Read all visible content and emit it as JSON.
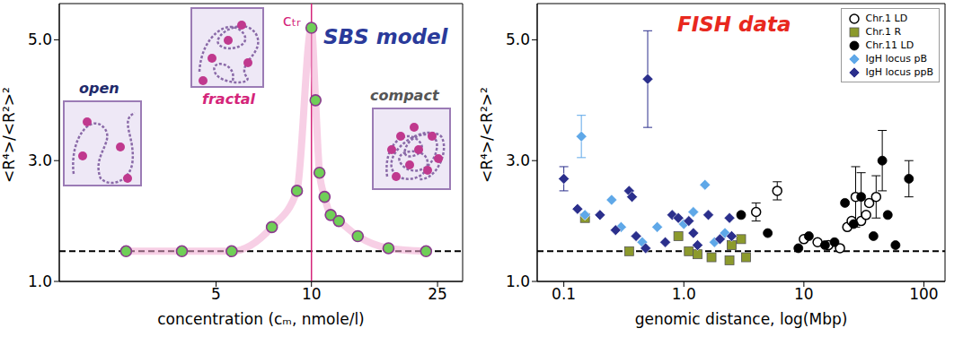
{
  "chart_data": [
    {
      "type": "scatter",
      "title": "SBS model",
      "x_label": "concentration (cₘ, nmole/l)",
      "y_label": "<R⁴>/<R²>²",
      "log": "x",
      "xlim": [
        1.6,
        30
      ],
      "xticks": [
        5,
        10,
        25
      ],
      "ylim": [
        1,
        5.6
      ],
      "yticks": [
        {
          "value": 1,
          "label": "1.0"
        },
        {
          "value": 3,
          "label": "3.0"
        },
        {
          "value": 5,
          "label": "5.0"
        }
      ],
      "x": [
        2.6,
        3.9,
        5.6,
        7.5,
        9.0,
        10.0,
        10.3,
        10.6,
        11.0,
        11.5,
        12.2,
        14.0,
        17.5,
        23.0
      ],
      "values": [
        1.5,
        1.5,
        1.5,
        1.9,
        2.5,
        5.2,
        4.0,
        2.8,
        2.4,
        2.1,
        2.0,
        1.75,
        1.55,
        1.5
      ],
      "color": "#6fcf57",
      "marker": "circle",
      "baseline": 1.5,
      "annotations": [
        {
          "text": "cₜᵣ",
          "x": 10
        }
      ],
      "regions": [
        "open",
        "fractal",
        "compact"
      ]
    },
    {
      "type": "scatter",
      "title": "FISH data",
      "x_label": "genomic distance, log(Mbp)",
      "y_label": "<R⁴>/<R²>²",
      "log": "x",
      "xlim": [
        0.06,
        150
      ],
      "xticks": [
        0.1,
        {
          "value": 1,
          "label": "1.0"
        },
        10,
        100
      ],
      "ylim": [
        1,
        5.6
      ],
      "yticks": [
        {
          "value": 1,
          "label": "1.0"
        },
        {
          "value": 3,
          "label": "3.0"
        },
        {
          "value": 5,
          "label": "5.0"
        }
      ],
      "baseline": 1.5,
      "legend": "upper right",
      "series": [
        {
          "name": "Chr.1 LD",
          "color": "#000000",
          "marker": "open_circle",
          "x": [
            4,
            6,
            10,
            13,
            16,
            20,
            23,
            25,
            27,
            30,
            33,
            35,
            40
          ],
          "values": [
            2.15,
            2.5,
            1.7,
            1.65,
            1.6,
            1.55,
            1.9,
            2.0,
            2.4,
            2.0,
            2.1,
            2.3,
            2.4
          ],
          "errors": [
            0.15,
            0.15,
            null,
            null,
            null,
            null,
            null,
            null,
            0.5,
            null,
            null,
            null,
            0.35
          ]
        },
        {
          "name": "Chr.1 R",
          "color": "#8c9a2c",
          "marker": "square",
          "x": [
            0.15,
            0.35,
            0.9,
            1.1,
            1.3,
            1.7,
            2.4,
            2.5,
            3.0,
            3.3
          ],
          "values": [
            2.05,
            1.5,
            1.75,
            1.5,
            1.45,
            1.4,
            1.35,
            1.6,
            1.7,
            1.4
          ]
        },
        {
          "name": "Chr.11 LD",
          "color": "#000000",
          "marker": "circle",
          "x": [
            3,
            5,
            9,
            11,
            15,
            18,
            22,
            26,
            30,
            38,
            45,
            50,
            58,
            75
          ],
          "values": [
            2.1,
            1.8,
            1.55,
            1.75,
            1.6,
            1.65,
            2.3,
            1.95,
            2.4,
            1.75,
            3.0,
            2.1,
            1.6,
            2.7
          ],
          "errors": [
            null,
            null,
            null,
            null,
            null,
            null,
            null,
            null,
            0.4,
            null,
            0.5,
            null,
            null,
            0.3
          ]
        },
        {
          "name": "IgH locus pB",
          "color": "#5fa8e8",
          "marker": "diamond",
          "x": [
            0.14,
            0.15,
            0.25,
            0.3,
            0.45,
            0.6,
            1.0,
            1.2,
            1.5,
            1.8,
            2.2
          ],
          "values": [
            3.4,
            2.1,
            2.35,
            1.9,
            1.65,
            1.9,
            1.95,
            2.15,
            2.6,
            1.65,
            1.8
          ],
          "errors": [
            0.35,
            null,
            null,
            null,
            null,
            null,
            null,
            null,
            null,
            null,
            null
          ]
        },
        {
          "name": "IgH locus ppB",
          "color": "#2b2f8c",
          "marker": "diamond",
          "x": [
            0.1,
            0.13,
            0.2,
            0.27,
            0.35,
            0.37,
            0.5,
            0.4,
            0.48,
            0.7,
            0.8,
            0.9,
            1.1,
            1.2,
            1.3,
            1.6,
            2.0,
            2.4,
            2.5
          ],
          "values": [
            2.7,
            2.2,
            2.1,
            1.85,
            2.5,
            2.4,
            4.35,
            1.75,
            1.55,
            1.65,
            2.1,
            2.05,
            2.0,
            1.8,
            1.6,
            2.1,
            1.7,
            2.05,
            1.75
          ],
          "errors": [
            0.2,
            null,
            null,
            null,
            null,
            null,
            0.8,
            null,
            null,
            null,
            null,
            null,
            null,
            null,
            null,
            null,
            null,
            null,
            null
          ]
        }
      ]
    }
  ]
}
